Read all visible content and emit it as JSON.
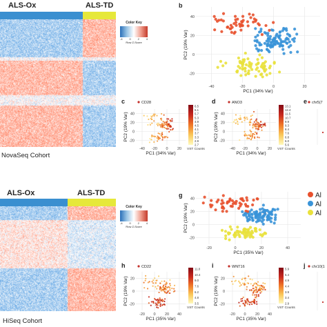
{
  "colors": {
    "ox_bar": "#3a8fd0",
    "td_bar": "#e6e83a",
    "red": "#e8512e",
    "blue": "#3a94d8",
    "yellow": "#e9e13c"
  },
  "top": {
    "ox_label": "ALS-Ox",
    "td_label": "ALS-TD",
    "cohort": "NovaSeq Cohort",
    "color_key": {
      "title": "Color Key",
      "ticks": [
        "-4",
        "0",
        "2",
        "4"
      ],
      "sub": "Row Z-Score"
    }
  },
  "bottom": {
    "ox_label": "ALS-Ox",
    "td_label": "ALS-TD",
    "cohort": "HiSeq Cohort",
    "color_key": {
      "title": "Color Key",
      "ticks": [
        "-4",
        "0",
        "2",
        "4"
      ],
      "sub": "Row Z-Score"
    }
  },
  "panels": {
    "b": {
      "letter": "b",
      "xlabel": "PC1 (34% Var)",
      "ylabel": "PC2 (19% Var)",
      "xticks": [
        "-40",
        "-20",
        "0",
        "20"
      ],
      "yticks": [
        "-20",
        "0",
        "20",
        "40"
      ]
    },
    "c": {
      "letter": "c",
      "gene": "CD28",
      "xlabel": "PC1 (34% Var)",
      "ylabel": "PC2 (19% Var)",
      "xticks": [
        "-40",
        "-20",
        "0",
        "20"
      ],
      "yticks": [
        "-20",
        "0",
        "20",
        "40"
      ],
      "scale": [
        "6.5",
        "6.1",
        "5.7",
        "5.3",
        "4.9",
        "4.5",
        "4.1",
        "3.7",
        "3.3",
        "2.9",
        "2.7"
      ],
      "scale_label": "VST Counts"
    },
    "d": {
      "letter": "d",
      "gene": "ANO3",
      "xlabel": "PC1 (34% Var)",
      "ylabel": "PC2 (19% Var)",
      "xticks": [
        "-40",
        "-20",
        "0",
        "20"
      ],
      "yticks": [
        "-20",
        "0",
        "20",
        "40"
      ],
      "scale": [
        "13.1",
        "12.4",
        "11.5",
        "10.7",
        "9.9",
        "9.3",
        "8.4",
        "7.6",
        "6.8",
        "6.0",
        "5.6"
      ],
      "scale_label": "VST Counts"
    },
    "e": {
      "letter": "e",
      "gene": "chr5(7"
    },
    "g": {
      "letter": "g",
      "xlabel": "PC1 (35% Var)",
      "ylabel": "PC2 (19% Var)",
      "xticks": [
        "-20",
        "0",
        "20",
        "40"
      ],
      "yticks": [
        "-20",
        "0",
        "20",
        "40"
      ],
      "legend": [
        "Al",
        "Al",
        "Al"
      ]
    },
    "h": {
      "letter": "h",
      "gene": "CD22",
      "xlabel": "PC1 (35% Var)",
      "ylabel": "PC2 (19% Var)",
      "xticks": [
        "-20",
        "0",
        "20",
        "40"
      ],
      "yticks": [
        "-20",
        "0",
        "20"
      ],
      "scale": [
        "11.8",
        "10.4",
        "9.0",
        "7.6",
        "6.2",
        "4.8",
        "3.5"
      ],
      "scale_label": "VST Counts"
    },
    "i": {
      "letter": "i",
      "gene": "WNT16",
      "xlabel": "PC1 (35% Var)",
      "ylabel": "PC2 (19% Var)",
      "xticks": [
        "-20",
        "0",
        "20",
        "40"
      ],
      "yticks": [
        "-20",
        "0",
        "20"
      ],
      "scale": [
        "5.9",
        "5.4",
        "4.9",
        "4.4",
        "3.9",
        "3.4",
        "2.9"
      ],
      "scale_label": "VST Counts"
    },
    "j": {
      "letter": "j",
      "gene": "chr10(1"
    }
  }
}
